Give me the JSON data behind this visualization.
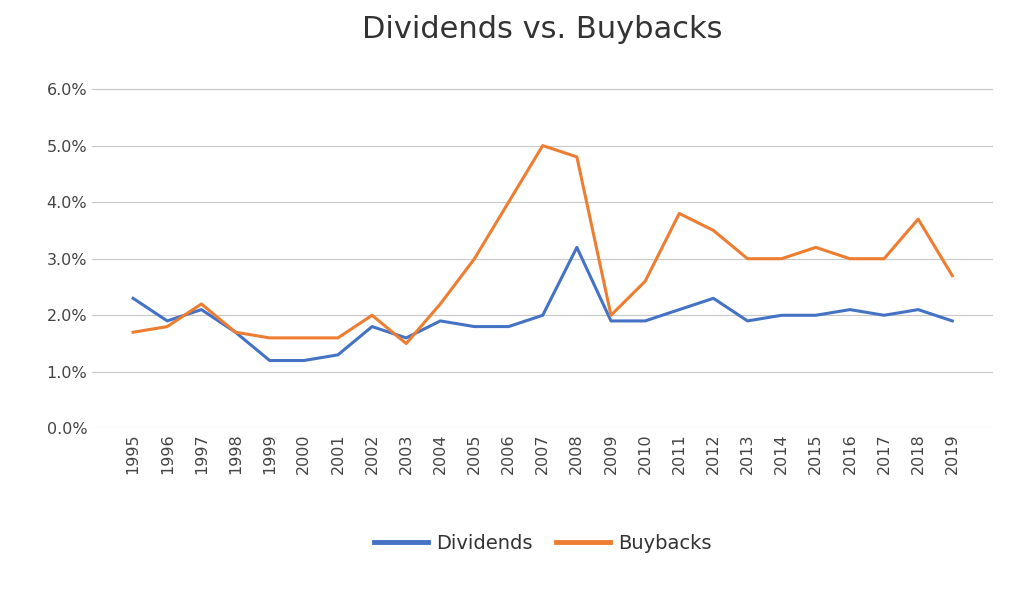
{
  "title": "Dividends vs. Buybacks",
  "years": [
    1995,
    1996,
    1997,
    1998,
    1999,
    2000,
    2001,
    2002,
    2003,
    2004,
    2005,
    2006,
    2007,
    2008,
    2009,
    2010,
    2011,
    2012,
    2013,
    2014,
    2015,
    2016,
    2017,
    2018,
    2019
  ],
  "dividends": [
    0.023,
    0.019,
    0.021,
    0.017,
    0.012,
    0.012,
    0.013,
    0.018,
    0.016,
    0.019,
    0.018,
    0.018,
    0.02,
    0.032,
    0.019,
    0.019,
    0.021,
    0.023,
    0.019,
    0.02,
    0.02,
    0.021,
    0.02,
    0.021,
    0.019
  ],
  "buybacks": [
    0.017,
    0.018,
    0.022,
    0.017,
    0.016,
    0.016,
    0.016,
    0.02,
    0.015,
    0.022,
    0.03,
    0.04,
    0.05,
    0.048,
    0.02,
    0.026,
    0.038,
    0.035,
    0.03,
    0.03,
    0.032,
    0.03,
    0.03,
    0.037,
    0.027
  ],
  "dividends_color": "#4472C4",
  "buybacks_color": "#ED7D31",
  "background_color": "#ffffff",
  "grid_color": "#c8c8c8",
  "ylim": [
    0.0,
    0.066
  ],
  "yticks": [
    0.0,
    0.01,
    0.02,
    0.03,
    0.04,
    0.05,
    0.06
  ],
  "legend_labels": [
    "Dividends",
    "Buybacks"
  ],
  "line_width": 2.2,
  "title_fontsize": 22,
  "tick_fontsize": 11.5,
  "legend_fontsize": 14
}
